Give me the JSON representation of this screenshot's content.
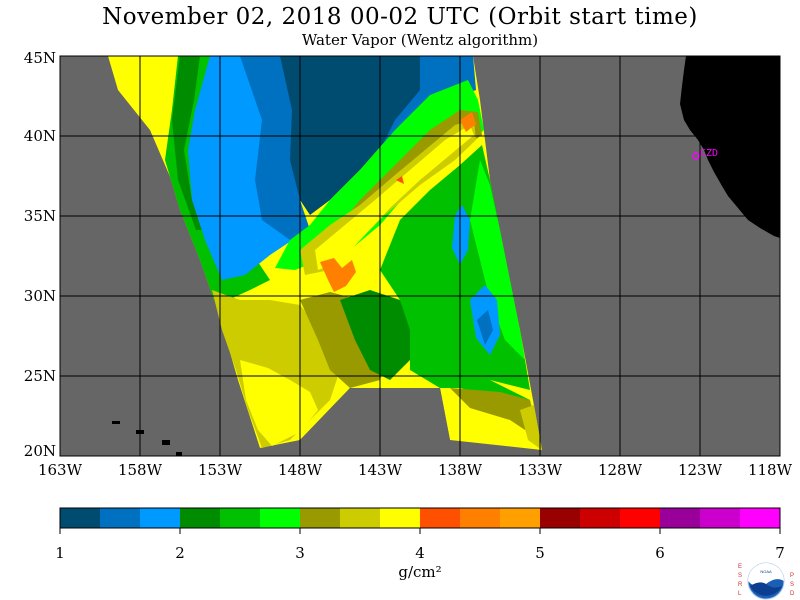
{
  "header": {
    "title": "November 02, 2018  00-02 UTC  (Orbit start time)",
    "subtitle": "Water Vapor (Wentz algorithm)"
  },
  "map": {
    "lat_labels": [
      "45N",
      "40N",
      "35N",
      "30N",
      "25N",
      "20N"
    ],
    "lon_labels": [
      "163W",
      "158W",
      "153W",
      "148W",
      "143W",
      "138W",
      "133W",
      "128W",
      "123W",
      "118W"
    ],
    "station_label": "CZD",
    "colors": {
      "land": "#000000",
      "nodata": "#666666",
      "grid": "#000000",
      "station": "#ff00ff"
    }
  },
  "colorbar": {
    "tick_labels": [
      "1",
      "2",
      "3",
      "4",
      "5",
      "6",
      "7"
    ],
    "units": "g/cm²",
    "colors": [
      "#004c70",
      "#0070c0",
      "#0099ff",
      "#008c00",
      "#00c000",
      "#00ff00",
      "#999900",
      "#cccc00",
      "#ffff00",
      "#ff5000",
      "#ff7f00",
      "#ffa000",
      "#990000",
      "#cc0000",
      "#ff0000",
      "#990099",
      "#cc00cc",
      "#ff00ff"
    ]
  },
  "logo": {
    "left_text": "ESRL",
    "right_text": "PSD",
    "center_text": "NOAA"
  }
}
